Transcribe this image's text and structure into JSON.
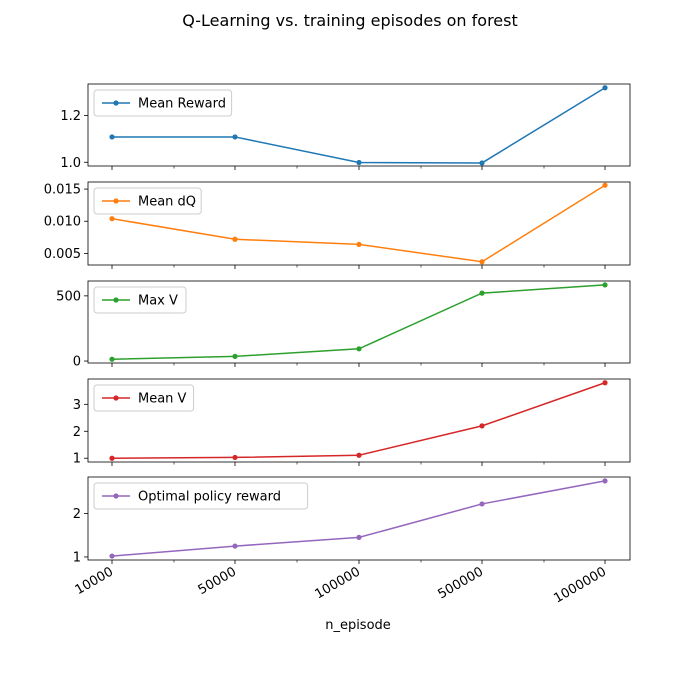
{
  "chart_data": {
    "type": "line",
    "title": "Q-Learning vs. training episodes on forest",
    "xlabel": "n_episode",
    "categories": [
      "10000",
      "50000",
      "100000",
      "500000",
      "1000000"
    ],
    "grid": false,
    "legend_placement": "upper left",
    "series": [
      {
        "name": "Mean Reward",
        "color": "#1f77b4",
        "values": [
          1.108,
          1.108,
          0.999,
          0.997,
          1.318
        ],
        "ylim": [
          0.984,
          1.334
        ],
        "yticks": [
          1.0,
          1.2
        ],
        "ytick_labels": [
          "1.0",
          "1.2"
        ]
      },
      {
        "name": "Mean dQ",
        "color": "#ff7f0e",
        "values": [
          0.0104,
          0.0072,
          0.0064,
          0.0037,
          0.0156
        ],
        "ylim": [
          0.0032,
          0.0161
        ],
        "yticks": [
          0.005,
          0.01,
          0.015
        ],
        "ytick_labels": [
          "0.005",
          "0.010",
          "0.015"
        ]
      },
      {
        "name": "Max V",
        "color": "#2ca02c",
        "values": [
          14,
          36,
          94,
          521,
          584
        ],
        "ylim": [
          -15,
          614
        ],
        "yticks": [
          0,
          500
        ],
        "ytick_labels": [
          "0",
          "500"
        ]
      },
      {
        "name": "Mean V",
        "color": "#d62728",
        "values": [
          1.0,
          1.03,
          1.11,
          2.2,
          3.8
        ],
        "ylim": [
          0.86,
          3.94
        ],
        "yticks": [
          1,
          2,
          3
        ],
        "ytick_labels": [
          "1",
          "2",
          "3"
        ]
      },
      {
        "name": "Optimal policy reward",
        "color": "#9467bd",
        "values": [
          1.02,
          1.25,
          1.45,
          2.22,
          2.75
        ],
        "ylim": [
          0.93,
          2.84
        ],
        "yticks": [
          1,
          2
        ],
        "ytick_labels": [
          "1",
          "2"
        ]
      }
    ]
  }
}
